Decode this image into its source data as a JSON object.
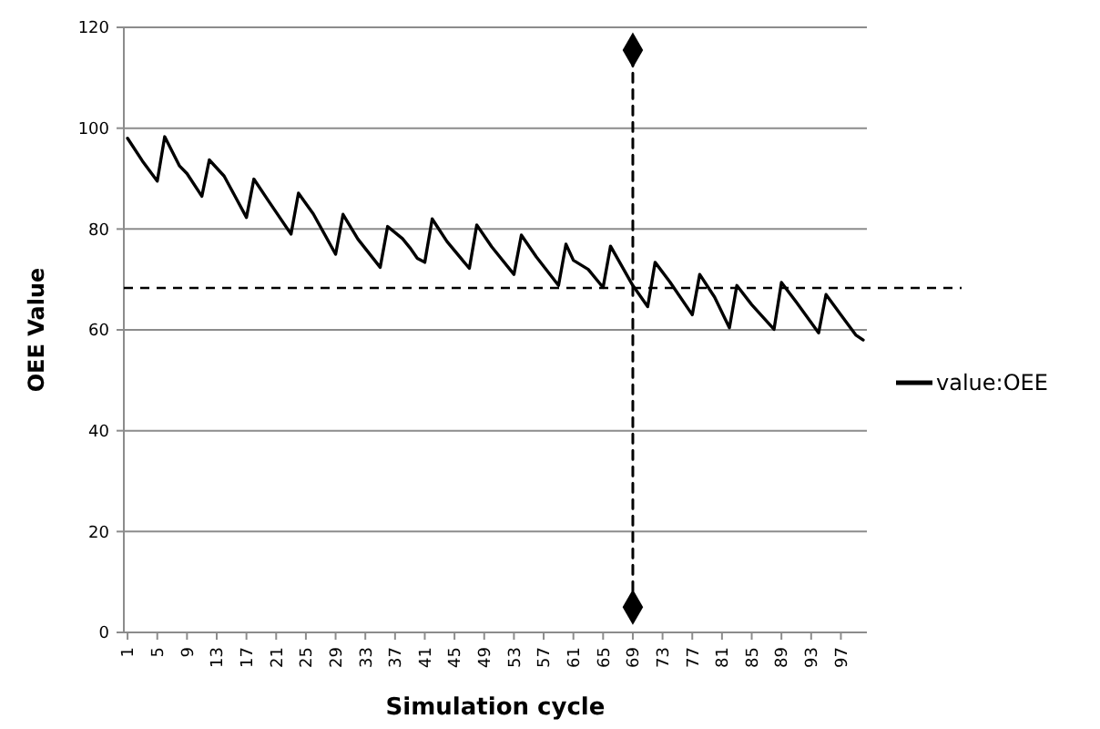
{
  "chart_data": {
    "type": "line",
    "xlabel": "Simulation cycle",
    "ylabel": "OEE Value",
    "xlim": [
      0.5,
      100.5
    ],
    "xticks": [
      1,
      5,
      9,
      13,
      17,
      21,
      25,
      29,
      33,
      37,
      41,
      45,
      49,
      53,
      57,
      61,
      65,
      69,
      73,
      77,
      81,
      85,
      89,
      93,
      97
    ],
    "ylim": [
      0,
      120
    ],
    "yticks": [
      0,
      20,
      40,
      60,
      80,
      100,
      120
    ],
    "grid": "y",
    "legend": "right",
    "series": [
      {
        "name": "value:OEE",
        "color": "#000000",
        "marker": "none",
        "line_style": "solid",
        "x": [
          1,
          3,
          5,
          6,
          8,
          9,
          11,
          12,
          14,
          17,
          18,
          20,
          23,
          24,
          26,
          29,
          30,
          32,
          35,
          36,
          38,
          39,
          40,
          41,
          42,
          44,
          47,
          48,
          50,
          53,
          54,
          56,
          59,
          60,
          61,
          63,
          65,
          66,
          69,
          71,
          72,
          74,
          77,
          78,
          80,
          82,
          83,
          85,
          88,
          89,
          91,
          94,
          95,
          97,
          99,
          100
        ],
        "values": [
          98,
          93.5,
          89.5,
          98.3,
          92.5,
          91,
          86.5,
          93.7,
          90.5,
          82.3,
          89.9,
          85.5,
          79,
          87.1,
          83,
          75,
          82.9,
          78,
          72.4,
          80.5,
          78.1,
          76.3,
          74.2,
          73.4,
          82,
          77.5,
          72.2,
          80.8,
          76.5,
          71,
          78.8,
          74.5,
          68.8,
          77,
          73.8,
          72,
          68.4,
          76.6,
          68.8,
          64.6,
          73.4,
          69.5,
          63,
          71,
          66.5,
          60.4,
          68.8,
          65,
          60.1,
          69.4,
          65.5,
          59.4,
          67,
          63,
          59,
          58
        ]
      },
      {
        "color": "#000000",
        "marker": "diamond",
        "line_style": "dashed",
        "x": [
          69,
          69
        ],
        "values": [
          5,
          115.5
        ]
      }
    ],
    "ref_lines": [
      {
        "axis": "y",
        "value": 68.3,
        "color": "#000000",
        "line_style": "dashed"
      }
    ]
  }
}
